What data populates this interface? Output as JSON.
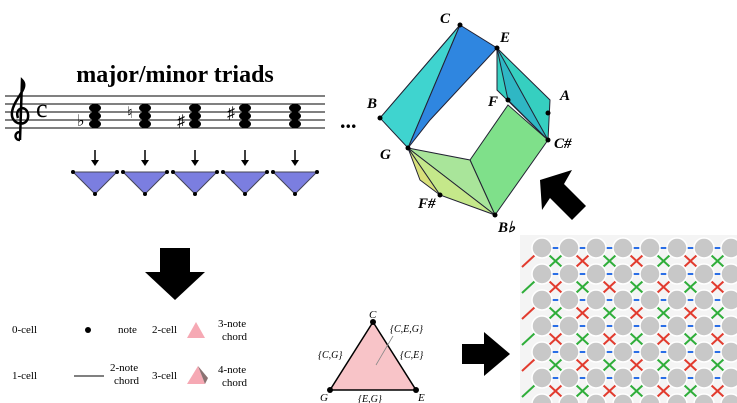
{
  "title": "major/minor triads",
  "ellipsis": "...",
  "time_signature": "c",
  "accidentals": [
    "♭",
    "♮",
    "♯",
    "♯",
    "♮"
  ],
  "polytope": {
    "labels": [
      "C",
      "E",
      "A",
      "B",
      "F",
      "G",
      "C#",
      "F#",
      "B♭"
    ]
  },
  "legend": {
    "rows": [
      {
        "cell": "0-cell",
        "desc": [
          "note"
        ]
      },
      {
        "cell": "1-cell",
        "desc": [
          "2-note",
          "chord"
        ]
      },
      {
        "cell": "2-cell",
        "desc": [
          "3-note",
          "chord"
        ]
      },
      {
        "cell": "3-cell",
        "desc": [
          "4-note",
          "chord"
        ]
      }
    ]
  },
  "simplex": {
    "vertices": [
      "C",
      "G",
      "E"
    ],
    "face": "{C,E,G}",
    "edges": [
      "{C,G}",
      "{C,E}",
      "{E,G}"
    ]
  }
}
